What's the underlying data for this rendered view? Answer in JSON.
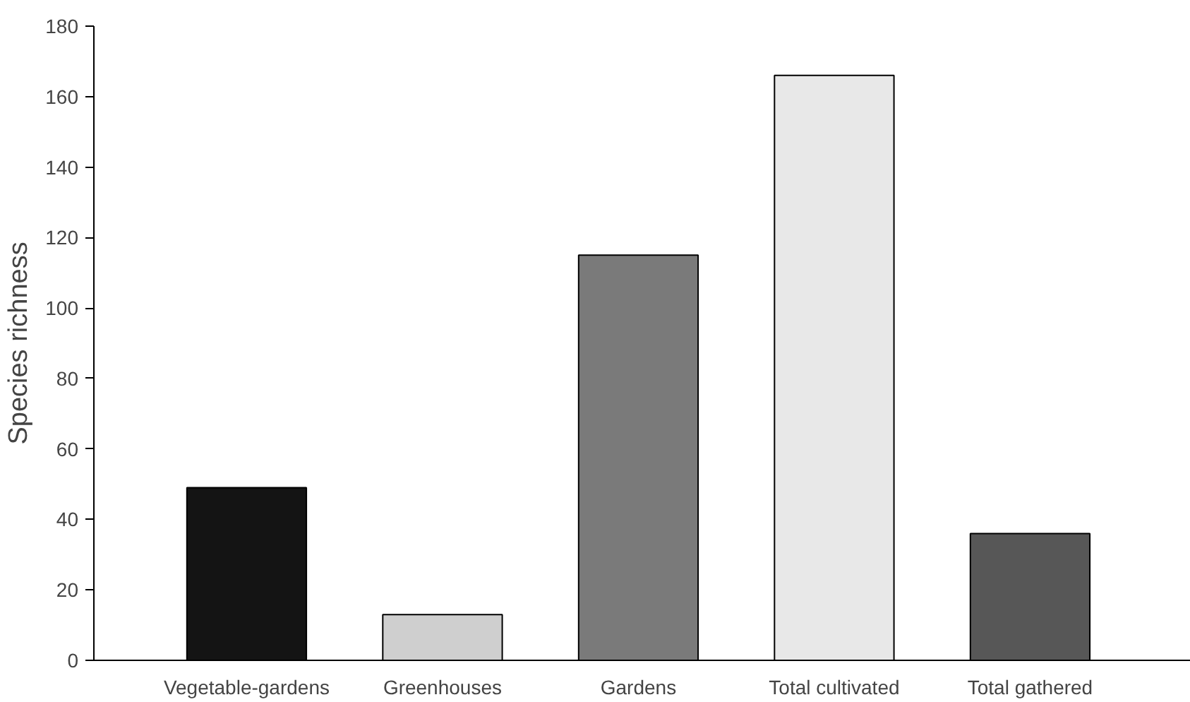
{
  "chart_data": {
    "type": "bar",
    "ylabel": "Species richness",
    "categories": [
      "Vegetable-gardens",
      "Greenhouses",
      "Gardens",
      "Total cultivated",
      "Total gathered"
    ],
    "values": [
      49,
      13,
      115,
      166,
      36
    ],
    "colors": [
      "#141414",
      "#cfcfcf",
      "#7a7a7a",
      "#e8e8e8",
      "#575757"
    ],
    "ylim": [
      0,
      180
    ],
    "yticks": [
      0,
      20,
      40,
      60,
      80,
      100,
      120,
      140,
      160,
      180
    ],
    "grid": false
  }
}
